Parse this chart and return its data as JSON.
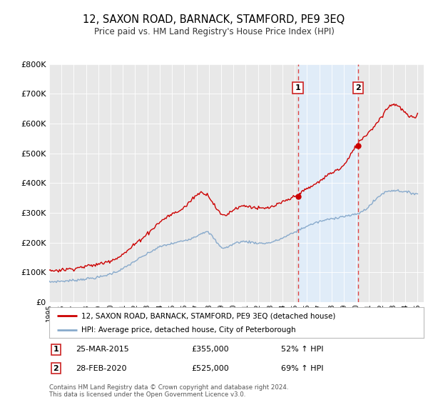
{
  "title": "12, SAXON ROAD, BARNACK, STAMFORD, PE9 3EQ",
  "subtitle": "Price paid vs. HM Land Registry's House Price Index (HPI)",
  "background_color": "#ffffff",
  "plot_bg_color": "#e8e8e8",
  "shaded_region_color": "#ddeeff",
  "ylim": [
    0,
    800000
  ],
  "yticks": [
    0,
    100000,
    200000,
    300000,
    400000,
    500000,
    600000,
    700000,
    800000
  ],
  "ytick_labels": [
    "£0",
    "£100K",
    "£200K",
    "£300K",
    "£400K",
    "£500K",
    "£600K",
    "£700K",
    "£800K"
  ],
  "sale1_x": 2015.25,
  "sale1_value": 355000,
  "sale2_x": 2020.17,
  "sale2_value": 525000,
  "sale1_date_str": "25-MAR-2015",
  "sale1_price_str": "£355,000",
  "sale1_pct": "52% ↑ HPI",
  "sale2_date_str": "28-FEB-2020",
  "sale2_price_str": "£525,000",
  "sale2_pct": "69% ↑ HPI",
  "red_line_color": "#cc0000",
  "blue_line_color": "#88aacc",
  "dashed_line_color": "#dd4444",
  "legend_label_red": "12, SAXON ROAD, BARNACK, STAMFORD, PE9 3EQ (detached house)",
  "legend_label_blue": "HPI: Average price, detached house, City of Peterborough",
  "footer": "Contains HM Land Registry data © Crown copyright and database right 2024.\nThis data is licensed under the Open Government Licence v3.0.",
  "xlim_start": 1995.0,
  "xlim_end": 2025.5
}
